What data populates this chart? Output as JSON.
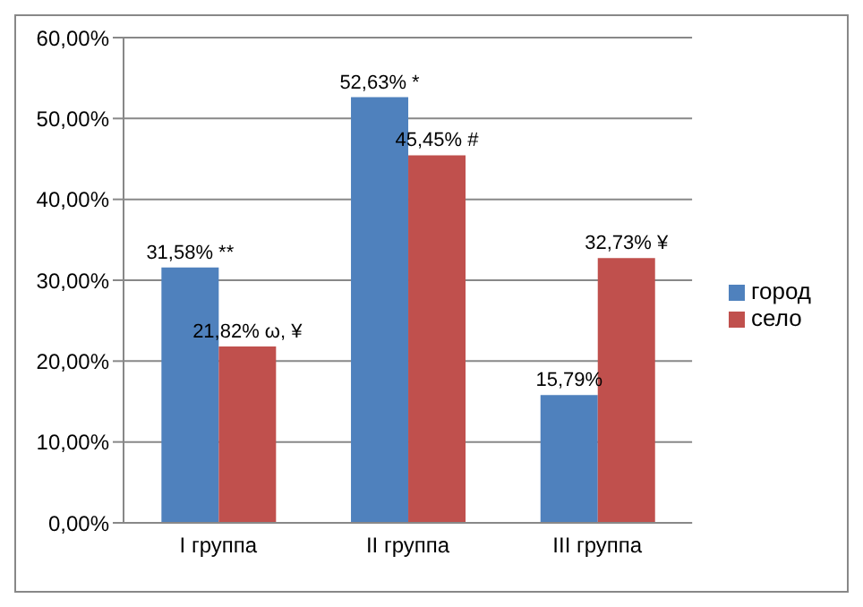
{
  "chart_data": {
    "type": "bar",
    "categories": [
      "I группа",
      "II группа",
      "III группа"
    ],
    "series": [
      {
        "name": "город",
        "color": "#4f81bd",
        "values": [
          31.58,
          52.63,
          15.79
        ],
        "value_labels": [
          "31,58% **",
          "52,63% *",
          "15,79%"
        ]
      },
      {
        "name": "село",
        "color": "#c0504d",
        "values": [
          21.82,
          45.45,
          32.73
        ],
        "value_labels": [
          "21,82% ω, ¥",
          "45,45% #",
          "32,73% ¥"
        ]
      }
    ],
    "ylim": [
      0,
      60
    ],
    "yticks": [
      {
        "value": 0,
        "label": "0,00%"
      },
      {
        "value": 10,
        "label": "10,00%"
      },
      {
        "value": 20,
        "label": "20,00%"
      },
      {
        "value": 30,
        "label": "30,00%"
      },
      {
        "value": 40,
        "label": "40,00%"
      },
      {
        "value": 50,
        "label": "50,00%"
      },
      {
        "value": 60,
        "label": "60,00%"
      }
    ],
    "grid": "y",
    "legend": "right"
  }
}
